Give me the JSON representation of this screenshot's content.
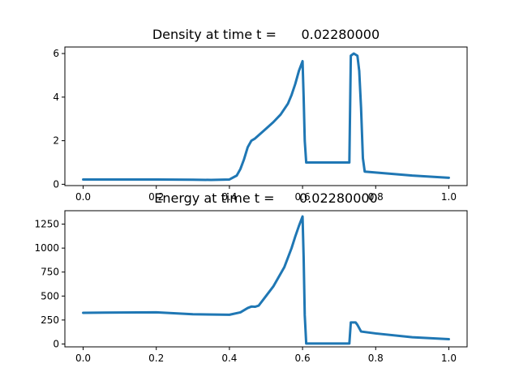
{
  "figure": {
    "background": "#ffffff"
  },
  "chart_data": [
    {
      "type": "line",
      "title": "Density at time t =      0.02280000",
      "xlabel": "",
      "ylabel": "",
      "xlim": [
        -0.05,
        1.05
      ],
      "ylim": [
        -0.06,
        6.3
      ],
      "xticks": [
        0.0,
        0.2,
        0.4,
        0.6,
        0.8,
        1.0
      ],
      "xtick_labels": [
        "0.0",
        "0.2",
        "0.4",
        "0.6",
        "0.8",
        "1.0"
      ],
      "yticks": [
        0,
        2,
        4,
        6
      ],
      "ytick_labels": [
        "0",
        "2",
        "4",
        "6"
      ],
      "grid": false,
      "series": [
        {
          "color": "#1f77b4",
          "x": [
            0.0,
            0.1,
            0.2,
            0.3,
            0.35,
            0.4,
            0.42,
            0.43,
            0.44,
            0.45,
            0.46,
            0.47,
            0.48,
            0.5,
            0.52,
            0.54,
            0.56,
            0.57,
            0.58,
            0.59,
            0.6,
            0.603,
            0.606,
            0.61,
            0.7,
            0.728,
            0.732,
            0.74,
            0.75,
            0.755,
            0.76,
            0.765,
            0.77,
            0.9,
            1.0
          ],
          "y": [
            0.22,
            0.22,
            0.22,
            0.21,
            0.2,
            0.22,
            0.4,
            0.7,
            1.15,
            1.7,
            2.0,
            2.1,
            2.25,
            2.55,
            2.85,
            3.2,
            3.7,
            4.1,
            4.6,
            5.2,
            5.65,
            4.0,
            2.0,
            1.0,
            1.0,
            1.0,
            5.9,
            6.0,
            5.9,
            5.2,
            3.5,
            1.2,
            0.58,
            0.4,
            0.3
          ]
        }
      ]
    },
    {
      "type": "line",
      "title": "Energy at time t =      0.02280000",
      "xlabel": "",
      "ylabel": "",
      "xlim": [
        -0.05,
        1.05
      ],
      "ylim": [
        -30,
        1390
      ],
      "xticks": [
        0.0,
        0.2,
        0.4,
        0.6,
        0.8,
        1.0
      ],
      "xtick_labels": [
        "0.0",
        "0.2",
        "0.4",
        "0.6",
        "0.8",
        "1.0"
      ],
      "yticks": [
        0,
        250,
        500,
        750,
        1000,
        1250
      ],
      "ytick_labels": [
        "0",
        "250",
        "500",
        "750",
        "1000",
        "1250"
      ],
      "grid": false,
      "series": [
        {
          "color": "#1f77b4",
          "x": [
            0.0,
            0.1,
            0.2,
            0.3,
            0.4,
            0.43,
            0.45,
            0.46,
            0.47,
            0.48,
            0.5,
            0.52,
            0.55,
            0.57,
            0.58,
            0.59,
            0.6,
            0.603,
            0.606,
            0.61,
            0.7,
            0.728,
            0.732,
            0.745,
            0.75,
            0.76,
            0.8,
            0.9,
            1.0
          ],
          "y": [
            325,
            328,
            330,
            310,
            305,
            330,
            375,
            390,
            388,
            400,
            500,
            600,
            800,
            1000,
            1120,
            1230,
            1330,
            900,
            300,
            5,
            5,
            5,
            225,
            225,
            200,
            130,
            110,
            70,
            50
          ]
        }
      ]
    }
  ]
}
